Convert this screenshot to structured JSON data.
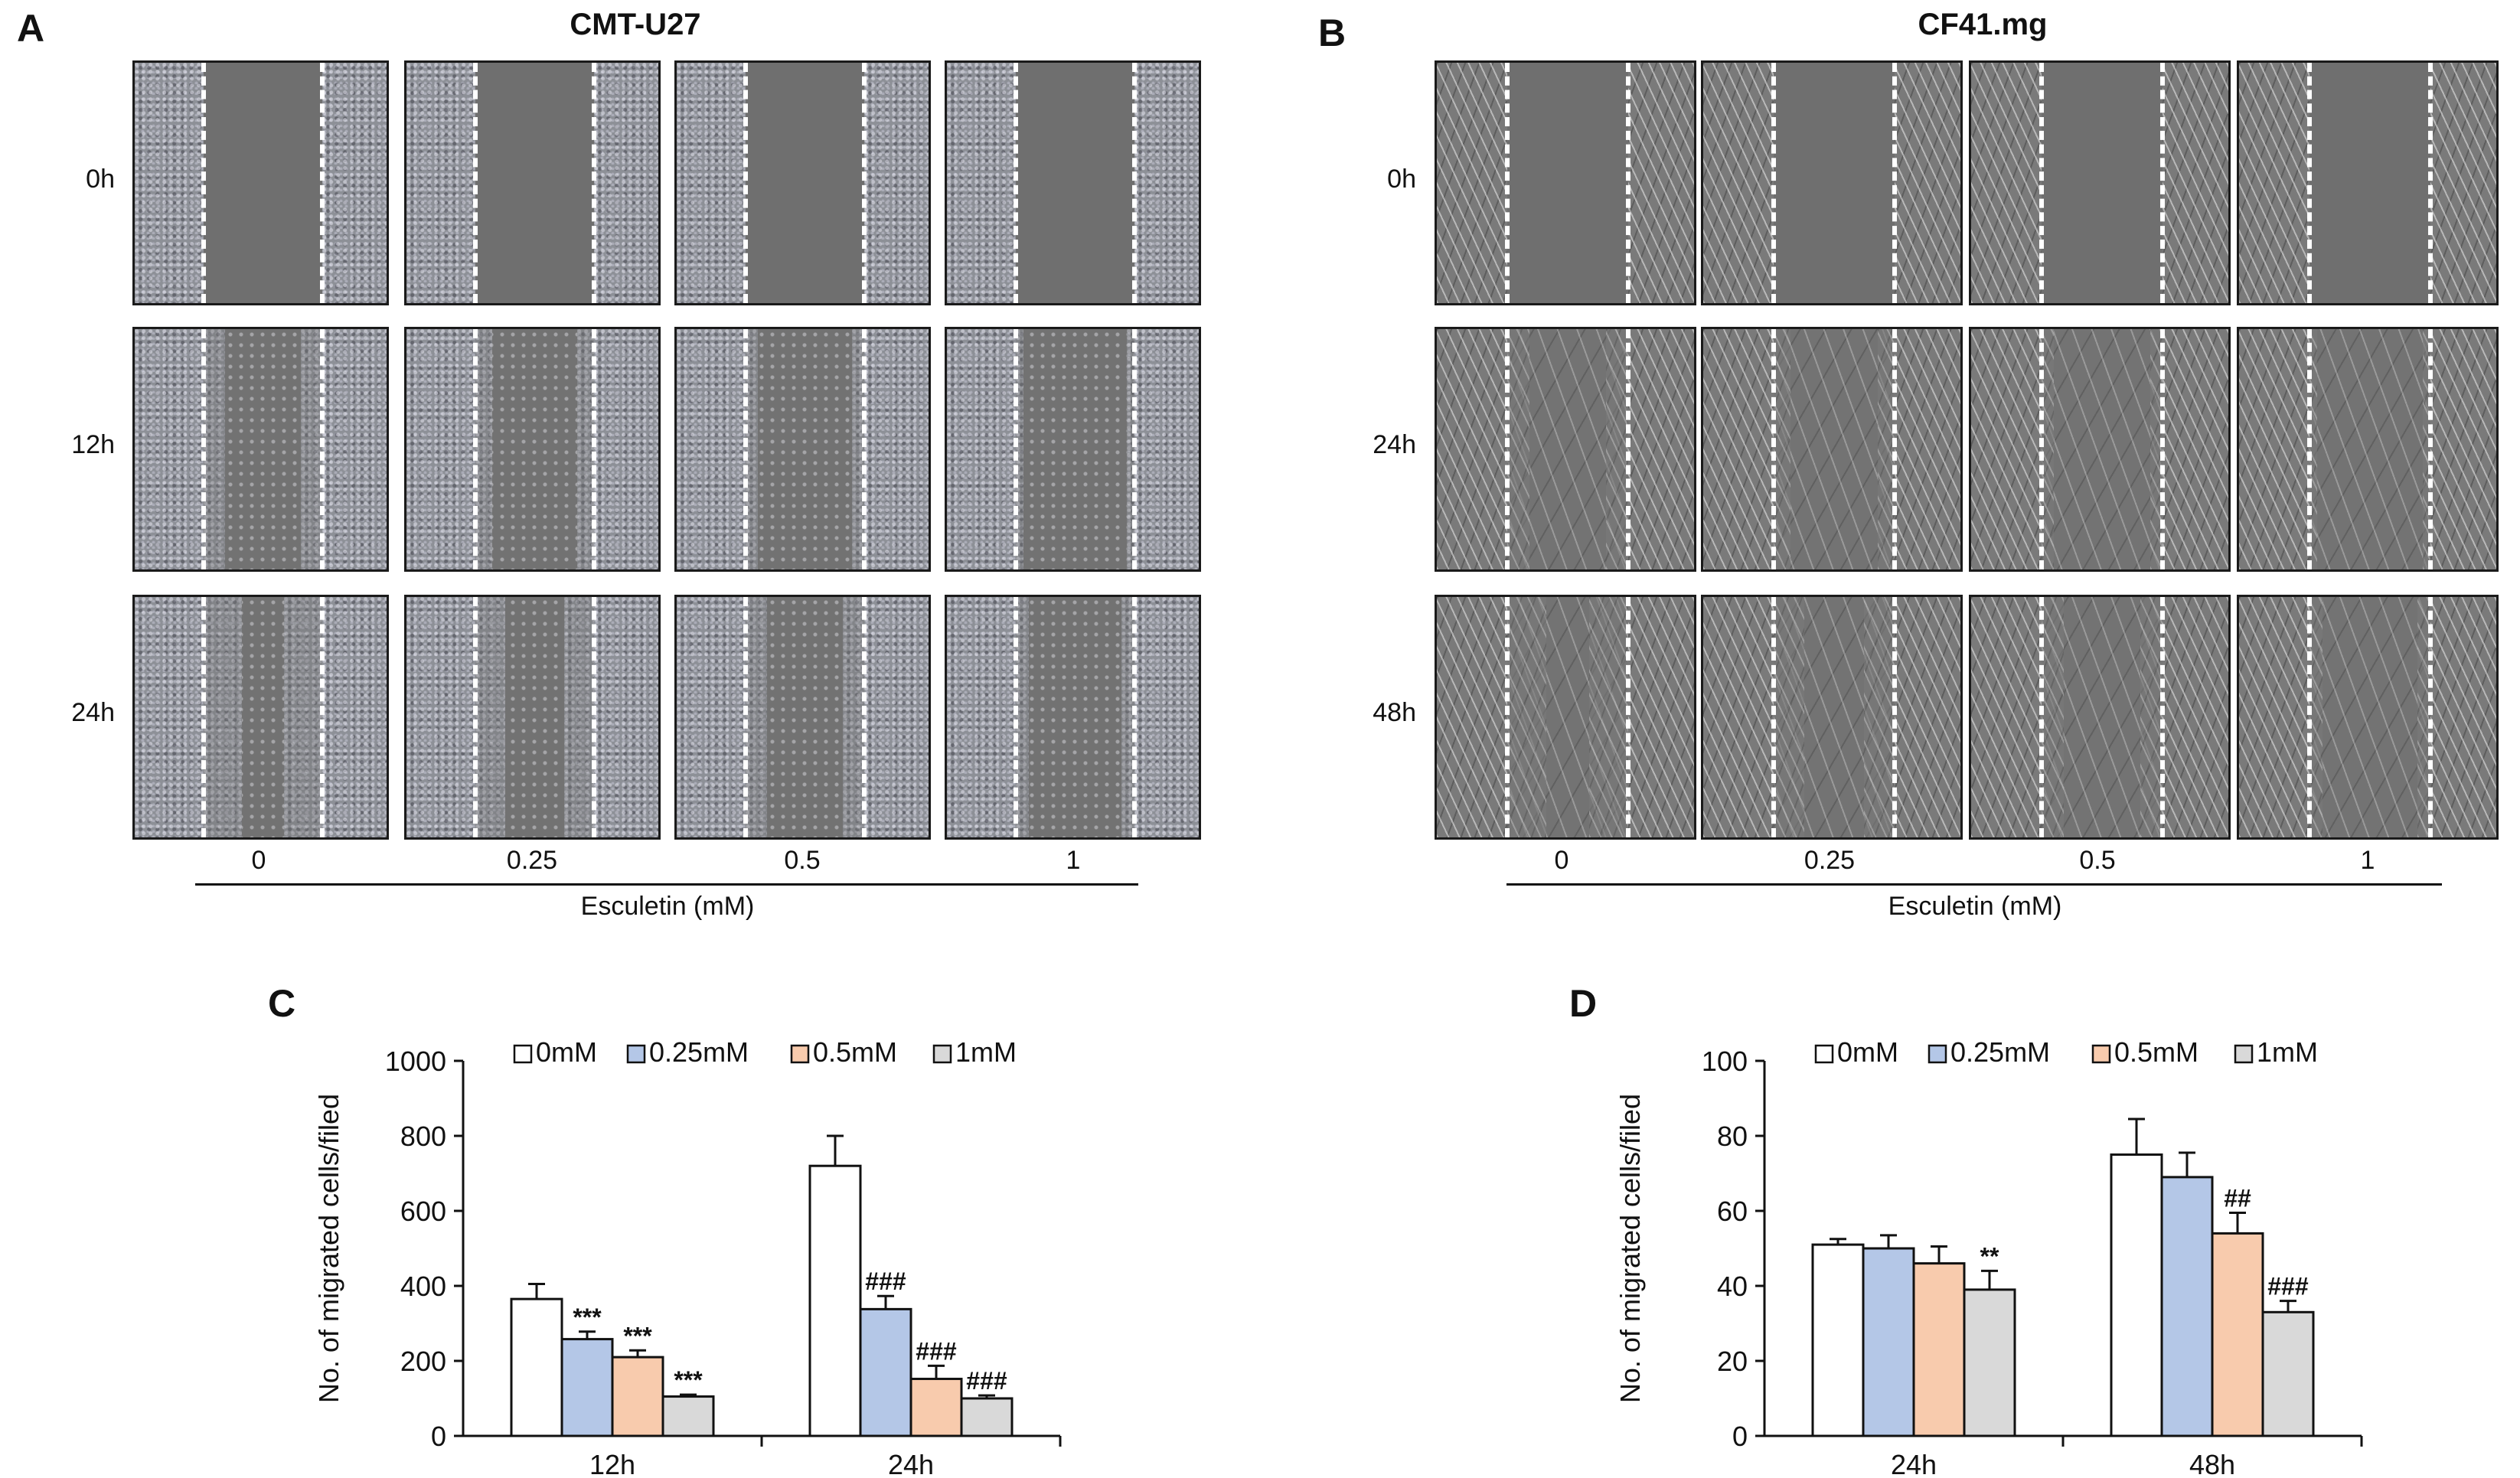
{
  "panels": {
    "a": {
      "letter": "A",
      "title": "CMT-U27",
      "rows": [
        "0h",
        "12h",
        "24h"
      ],
      "columns": [
        "0",
        "0.25",
        "0.5",
        "1"
      ],
      "axis_title": "Esculetin (mM)"
    },
    "b": {
      "letter": "B",
      "title": "CF41.mg",
      "rows": [
        "0h",
        "24h",
        "48h"
      ],
      "columns": [
        "0",
        "0.25",
        "0.5",
        "1"
      ],
      "axis_title": "Esculetin (mM)"
    },
    "c": {
      "letter": "C"
    },
    "d": {
      "letter": "D"
    }
  },
  "colors": {
    "s0": "#ffffff",
    "s1": "#b4c7e7",
    "s2": "#f8cbad",
    "s3": "#d9d9d9"
  },
  "chart_data": [
    {
      "id": "C",
      "type": "bar",
      "title": "",
      "xlabel": "",
      "ylabel": "No. of migrated cells/filed",
      "ylim": [
        0,
        1000
      ],
      "yticks": [
        "0",
        "200",
        "400",
        "600",
        "800",
        "1000"
      ],
      "categories": [
        "12h",
        "24h"
      ],
      "legend_position": "top",
      "series": [
        {
          "name": "0mM",
          "values": [
            365,
            720
          ],
          "errors": [
            40,
            80
          ],
          "annotations": [
            "",
            ""
          ]
        },
        {
          "name": "0.25mM",
          "values": [
            258,
            338
          ],
          "errors": [
            20,
            35
          ],
          "annotations": [
            "***",
            "###"
          ]
        },
        {
          "name": "0.5mM",
          "values": [
            210,
            152
          ],
          "errors": [
            18,
            35
          ],
          "annotations": [
            "***",
            "###"
          ]
        },
        {
          "name": "1mM",
          "values": [
            105,
            100
          ],
          "errors": [
            5,
            8
          ],
          "annotations": [
            "***",
            "###"
          ]
        }
      ]
    },
    {
      "id": "D",
      "type": "bar",
      "title": "",
      "xlabel": "",
      "ylabel": "No. of migrated cells/filed",
      "ylim": [
        0,
        100
      ],
      "yticks": [
        "0",
        "20",
        "40",
        "60",
        "80",
        "100"
      ],
      "categories": [
        "24h",
        "48h"
      ],
      "legend_position": "top",
      "series": [
        {
          "name": "0mM",
          "values": [
            51,
            75
          ],
          "errors": [
            1.5,
            9.5
          ],
          "annotations": [
            "",
            ""
          ]
        },
        {
          "name": "0.25mM",
          "values": [
            50,
            69
          ],
          "errors": [
            3.5,
            6.5
          ],
          "annotations": [
            "",
            ""
          ]
        },
        {
          "name": "0.5mM",
          "values": [
            46,
            54
          ],
          "errors": [
            4.5,
            5.5
          ],
          "annotations": [
            "",
            "##"
          ]
        },
        {
          "name": "1mM",
          "values": [
            39,
            33
          ],
          "errors": [
            5,
            3
          ],
          "annotations": [
            "**",
            "###"
          ]
        }
      ]
    }
  ]
}
